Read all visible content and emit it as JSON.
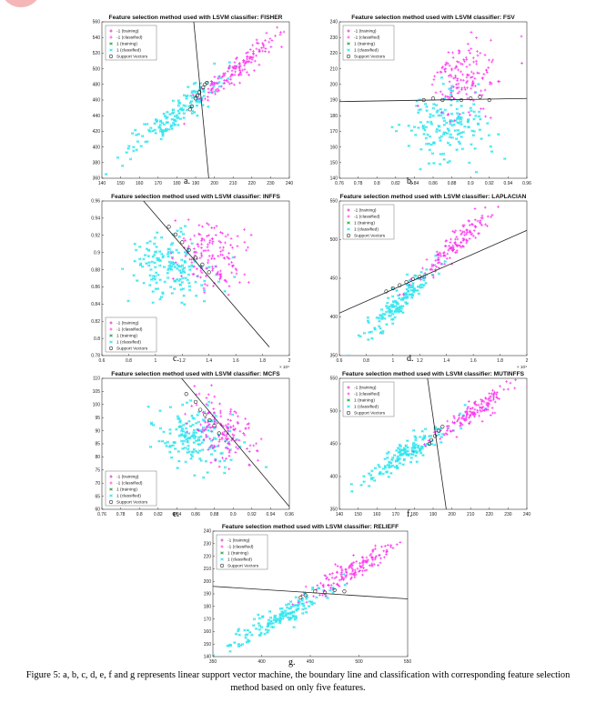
{
  "caption": "Figure 5: a, b, c, d, e, f and g represents linear support vector machine, the boundary line and classification with corresponding feature selection method based on only five features.",
  "colors": {
    "neg_training": "#d41ac8",
    "neg_classified": "#ff33ee",
    "pos_training": "#2aa84a",
    "pos_classified": "#33e6ee",
    "boundary": "#222222",
    "sv": "#222222"
  },
  "chart_data": [
    {
      "id": "a",
      "type": "scatter",
      "sublabel": "a.",
      "title": "Feature selection method used with LSVM classifier: FISHER",
      "xlim": [
        140,
        240
      ],
      "ylim": [
        360,
        560
      ],
      "xticks": [
        "140",
        "150",
        "160",
        "170",
        "180",
        "190",
        "200",
        "210",
        "220",
        "230",
        "240"
      ],
      "yticks": [
        "360",
        "380",
        "400",
        "420",
        "440",
        "460",
        "480",
        "500",
        "520",
        "540",
        "560"
      ],
      "x_multiplier": "",
      "legend_position": "top-left",
      "legend": [
        "-1 (training)",
        "-1 (classified)",
        "1 (training)",
        "1 (classified)",
        "Support Vectors"
      ],
      "clusters": [
        {
          "series": "1 (classified)",
          "center": [
            178,
            440
          ],
          "spread": [
            13,
            26
          ],
          "corr": 0.93,
          "count": 160
        },
        {
          "series": "-1 (classified)",
          "center": [
            212,
            500
          ],
          "spread": [
            11,
            22
          ],
          "corr": 0.93,
          "count": 150
        }
      ],
      "boundary": [
        [
          189,
          560
        ],
        [
          197,
          360
        ]
      ],
      "support_vectors": [
        [
          188,
          452
        ],
        [
          190,
          462
        ],
        [
          192,
          470
        ],
        [
          194,
          476
        ],
        [
          196,
          482
        ],
        [
          187,
          448
        ],
        [
          191,
          466
        ],
        [
          195,
          480
        ]
      ]
    },
    {
      "id": "b",
      "type": "scatter",
      "sublabel": "b.",
      "title": "Feature selection method used with LSVM classifier: FSV",
      "xlim": [
        0.76,
        0.96
      ],
      "ylim": [
        140,
        240
      ],
      "xticks": [
        "0.76",
        "0.78",
        "0.8",
        "0.82",
        "0.84",
        "0.86",
        "0.88",
        "0.9",
        "0.92",
        "0.94",
        "0.96"
      ],
      "yticks": [
        "140",
        "150",
        "160",
        "170",
        "180",
        "190",
        "200",
        "210",
        "220",
        "230",
        "240"
      ],
      "x_multiplier": "",
      "legend_position": "top-left",
      "legend": [
        "-1 (training)",
        "-1 (classified)",
        "1 (training)",
        "1 (classified)",
        "Support Vectors"
      ],
      "clusters": [
        {
          "series": "1 (classified)",
          "center": [
            0.872,
            172
          ],
          "spread": [
            0.022,
            11
          ],
          "corr": 0.1,
          "count": 170
        },
        {
          "series": "-1 (classified)",
          "center": [
            0.893,
            205
          ],
          "spread": [
            0.018,
            11
          ],
          "corr": 0.2,
          "count": 150
        }
      ],
      "boundary": [
        [
          0.76,
          189
        ],
        [
          0.96,
          191
        ]
      ],
      "support_vectors": [
        [
          0.85,
          190
        ],
        [
          0.86,
          191
        ],
        [
          0.87,
          190
        ],
        [
          0.88,
          191
        ],
        [
          0.89,
          190
        ],
        [
          0.9,
          191
        ],
        [
          0.91,
          192
        ],
        [
          0.92,
          190
        ]
      ]
    },
    {
      "id": "c",
      "type": "scatter",
      "sublabel": "c.",
      "title": "Feature selection method used with LSVM classifier: INFFS",
      "xlim": [
        0.6,
        2.0
      ],
      "ylim": [
        0.78,
        0.96
      ],
      "xticks": [
        "0.6",
        "0.8",
        "1",
        "1.2",
        "1.4",
        "1.6",
        "1.8",
        "2"
      ],
      "yticks": [
        "0.78",
        "0.8",
        "0.82",
        "0.84",
        "0.86",
        "0.88",
        "0.9",
        "0.92",
        "0.94",
        "0.96"
      ],
      "x_multiplier": "× 10⁴",
      "legend_position": "bottom-left",
      "legend": [
        "-1 (training)",
        "-1 (classified)",
        "1 (training)",
        "1 (classified)",
        "Support Vectors"
      ],
      "clusters": [
        {
          "series": "1 (classified)",
          "center": [
            1.12,
            0.885
          ],
          "spread": [
            0.15,
            0.02
          ],
          "corr": -0.2,
          "count": 170
        },
        {
          "series": "-1 (classified)",
          "center": [
            1.42,
            0.896
          ],
          "spread": [
            0.13,
            0.018
          ],
          "corr": -0.1,
          "count": 150
        }
      ],
      "boundary": [
        [
          0.9,
          0.962
        ],
        [
          1.85,
          0.79
        ]
      ],
      "support_vectors": [
        [
          1.2,
          0.912
        ],
        [
          1.25,
          0.903
        ],
        [
          1.3,
          0.894
        ],
        [
          1.35,
          0.886
        ],
        [
          1.4,
          0.877
        ],
        [
          1.1,
          0.93
        ],
        [
          1.15,
          0.921
        ]
      ]
    },
    {
      "id": "d",
      "type": "scatter",
      "sublabel": "d.",
      "title": "Feature selection method used with LSVM classifier: LAPLACIAN",
      "xlim": [
        0.6,
        2.0
      ],
      "ylim": [
        350,
        550
      ],
      "xticks": [
        "0.6",
        "0.8",
        "1",
        "1.2",
        "1.4",
        "1.6",
        "1.8",
        "2"
      ],
      "yticks": [
        "350",
        "400",
        "450",
        "500",
        "550"
      ],
      "x_multiplier": "× 10⁴",
      "legend_position": "top-left",
      "legend": [
        "-1 (training)",
        "-1 (classified)",
        "1 (training)",
        "1 (classified)",
        "Support Vectors"
      ],
      "clusters": [
        {
          "series": "1 (classified)",
          "center": [
            1.05,
            420
          ],
          "spread": [
            0.14,
            24
          ],
          "corr": 0.93,
          "count": 160
        },
        {
          "series": "-1 (classified)",
          "center": [
            1.45,
            492
          ],
          "spread": [
            0.14,
            24
          ],
          "corr": 0.93,
          "count": 150
        }
      ],
      "boundary": [
        [
          0.6,
          405
        ],
        [
          2.0,
          512
        ]
      ],
      "support_vectors": [
        [
          1.0,
          437
        ],
        [
          1.05,
          441
        ],
        [
          1.1,
          445
        ],
        [
          1.15,
          449
        ],
        [
          1.2,
          452
        ],
        [
          0.95,
          433
        ]
      ]
    },
    {
      "id": "e",
      "type": "scatter",
      "sublabel": "e.",
      "title": "Feature selection method used with LSVM classifier: MCFS",
      "xlim": [
        0.76,
        0.96
      ],
      "ylim": [
        60,
        110
      ],
      "xticks": [
        "0.76",
        "0.78",
        "0.8",
        "0.82",
        "0.84",
        "0.86",
        "0.88",
        "0.9",
        "0.92",
        "0.94",
        "0.96"
      ],
      "yticks": [
        "60",
        "65",
        "70",
        "75",
        "80",
        "85",
        "90",
        "95",
        "100",
        "105",
        "110"
      ],
      "x_multiplier": "",
      "legend_position": "bottom-left",
      "legend": [
        "-1 (training)",
        "-1 (classified)",
        "1 (training)",
        "1 (classified)",
        "Support Vectors"
      ],
      "clusters": [
        {
          "series": "1 (classified)",
          "center": [
            0.857,
            87
          ],
          "spread": [
            0.02,
            6.5
          ],
          "corr": -0.3,
          "count": 170
        },
        {
          "series": "-1 (classified)",
          "center": [
            0.888,
            90
          ],
          "spread": [
            0.016,
            6
          ],
          "corr": -0.3,
          "count": 150
        }
      ],
      "boundary": [
        [
          0.845,
          110
        ],
        [
          0.96,
          61
        ]
      ],
      "support_vectors": [
        [
          0.86,
          101
        ],
        [
          0.865,
          98
        ],
        [
          0.87,
          96
        ],
        [
          0.875,
          94
        ],
        [
          0.88,
          92
        ],
        [
          0.885,
          89
        ],
        [
          0.85,
          104
        ]
      ]
    },
    {
      "id": "f",
      "type": "scatter",
      "sublabel": "f.",
      "title": "Feature selection method used with LSVM classifier: MUTINFFS",
      "xlim": [
        140,
        240
      ],
      "ylim": [
        350,
        550
      ],
      "xticks": [
        "140",
        "150",
        "160",
        "170",
        "180",
        "190",
        "200",
        "210",
        "220",
        "230",
        "240"
      ],
      "yticks": [
        "350",
        "400",
        "450",
        "500",
        "550"
      ],
      "x_multiplier": "",
      "legend_position": "top-left",
      "legend": [
        "-1 (training)",
        "-1 (classified)",
        "1 (training)",
        "1 (classified)",
        "Support Vectors"
      ],
      "clusters": [
        {
          "series": "1 (classified)",
          "center": [
            176,
            437
          ],
          "spread": [
            13,
            25
          ],
          "corr": 0.93,
          "count": 160
        },
        {
          "series": "-1 (classified)",
          "center": [
            212,
            500
          ],
          "spread": [
            11,
            22
          ],
          "corr": 0.93,
          "count": 150
        }
      ],
      "boundary": [
        [
          187,
          550
        ],
        [
          197,
          350
        ]
      ],
      "support_vectors": [
        [
          189,
          456
        ],
        [
          191,
          462
        ],
        [
          193,
          470
        ],
        [
          195,
          476
        ],
        [
          188,
          450
        ]
      ]
    },
    {
      "id": "g",
      "type": "scatter",
      "sublabel": "g.",
      "title": "Feature selection method used with LSVM classifier: RELIEFF",
      "xlim": [
        350,
        550
      ],
      "ylim": [
        140,
        240
      ],
      "xticks": [
        "350",
        "400",
        "450",
        "500",
        "550"
      ],
      "yticks": [
        "140",
        "150",
        "160",
        "170",
        "180",
        "190",
        "200",
        "210",
        "220",
        "230",
        "240"
      ],
      "x_multiplier": "",
      "legend_position": "top-left",
      "legend": [
        "-1 (training)",
        "-1 (classified)",
        "1 (training)",
        "1 (classified)",
        "Support Vectors"
      ],
      "clusters": [
        {
          "series": "1 (classified)",
          "center": [
            420,
            172
          ],
          "spread": [
            28,
            13
          ],
          "corr": 0.93,
          "count": 160
        },
        {
          "series": "-1 (classified)",
          "center": [
            495,
            210
          ],
          "spread": [
            24,
            11
          ],
          "corr": 0.93,
          "count": 150
        }
      ],
      "boundary": [
        [
          350,
          196
        ],
        [
          550,
          186
        ]
      ],
      "support_vectors": [
        [
          445,
          189
        ],
        [
          455,
          192
        ],
        [
          465,
          191
        ],
        [
          475,
          193
        ],
        [
          485,
          192
        ],
        [
          440,
          187
        ]
      ]
    }
  ]
}
